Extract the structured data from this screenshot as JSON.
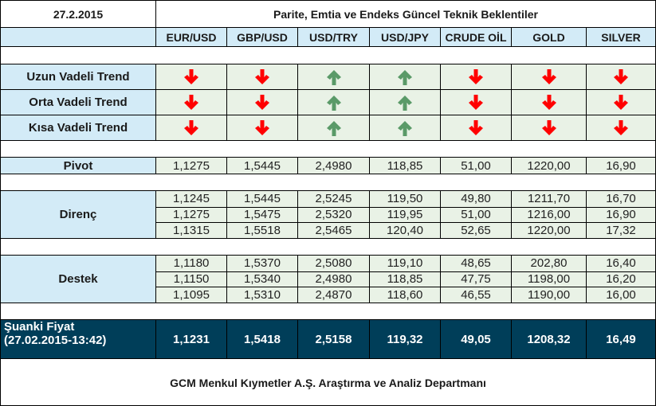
{
  "header": {
    "date": "27.2.2015",
    "title": "Parite, Emtia ve Endeks Güncel Teknik Beklentiler"
  },
  "columns": [
    "EUR/USD",
    "GBP/USD",
    "USD/TRY",
    "USD/JPY",
    "CRUDE OİL",
    "GOLD",
    "SILVER"
  ],
  "colors": {
    "header_bg": "#d3ebf7",
    "value_bg": "#e9f2e6",
    "dark_bg": "#003e59",
    "arrow_down": "#ff0000",
    "arrow_up": "#5a9a68"
  },
  "trends": {
    "long": {
      "label": "Uzun Vadeli Trend",
      "directions": [
        "down",
        "down",
        "up",
        "up",
        "down",
        "down",
        "down"
      ]
    },
    "mid": {
      "label": "Orta Vadeli Trend",
      "directions": [
        "down",
        "down",
        "up",
        "up",
        "down",
        "down",
        "down"
      ]
    },
    "short": {
      "label": "Kısa Vadeli Trend",
      "directions": [
        "down",
        "down",
        "up",
        "up",
        "down",
        "down",
        "down"
      ]
    }
  },
  "pivot": {
    "label": "Pivot",
    "values": [
      "1,1275",
      "1,5445",
      "2,4980",
      "118,85",
      "51,00",
      "1220,00",
      "16,90"
    ]
  },
  "resistance": {
    "label": "Direnç",
    "rows": [
      [
        "1,1245",
        "1,5445",
        "2,5245",
        "119,50",
        "49,80",
        "1211,70",
        "16,70"
      ],
      [
        "1,1275",
        "1,5475",
        "2,5320",
        "119,95",
        "51,00",
        "1216,00",
        "16,90"
      ],
      [
        "1,1315",
        "1,5518",
        "2,5465",
        "120,40",
        "52,65",
        "1220,00",
        "17,32"
      ]
    ]
  },
  "support": {
    "label": "Destek",
    "rows": [
      [
        "1,1180",
        "1,5370",
        "2,5080",
        "119,10",
        "48,65",
        "202,80",
        "16,40"
      ],
      [
        "1,1150",
        "1,5340",
        "2,4980",
        "118,85",
        "47,75",
        "1198,00",
        "16,20"
      ],
      [
        "1,1095",
        "1,5310",
        "2,4870",
        "118,60",
        "46,55",
        "1190,00",
        "16,00"
      ]
    ]
  },
  "current": {
    "label_line1": "Şuanki Fiyat",
    "label_line2": "(27.02.2015-13:42)",
    "values": [
      "1,1231",
      "1,5418",
      "2,5158",
      "119,32",
      "49,05",
      "1208,32",
      "16,49"
    ]
  },
  "footer": {
    "text": "GCM Menkul Kıymetler A.Ş. Araştırma ve Analiz Departmanı"
  }
}
